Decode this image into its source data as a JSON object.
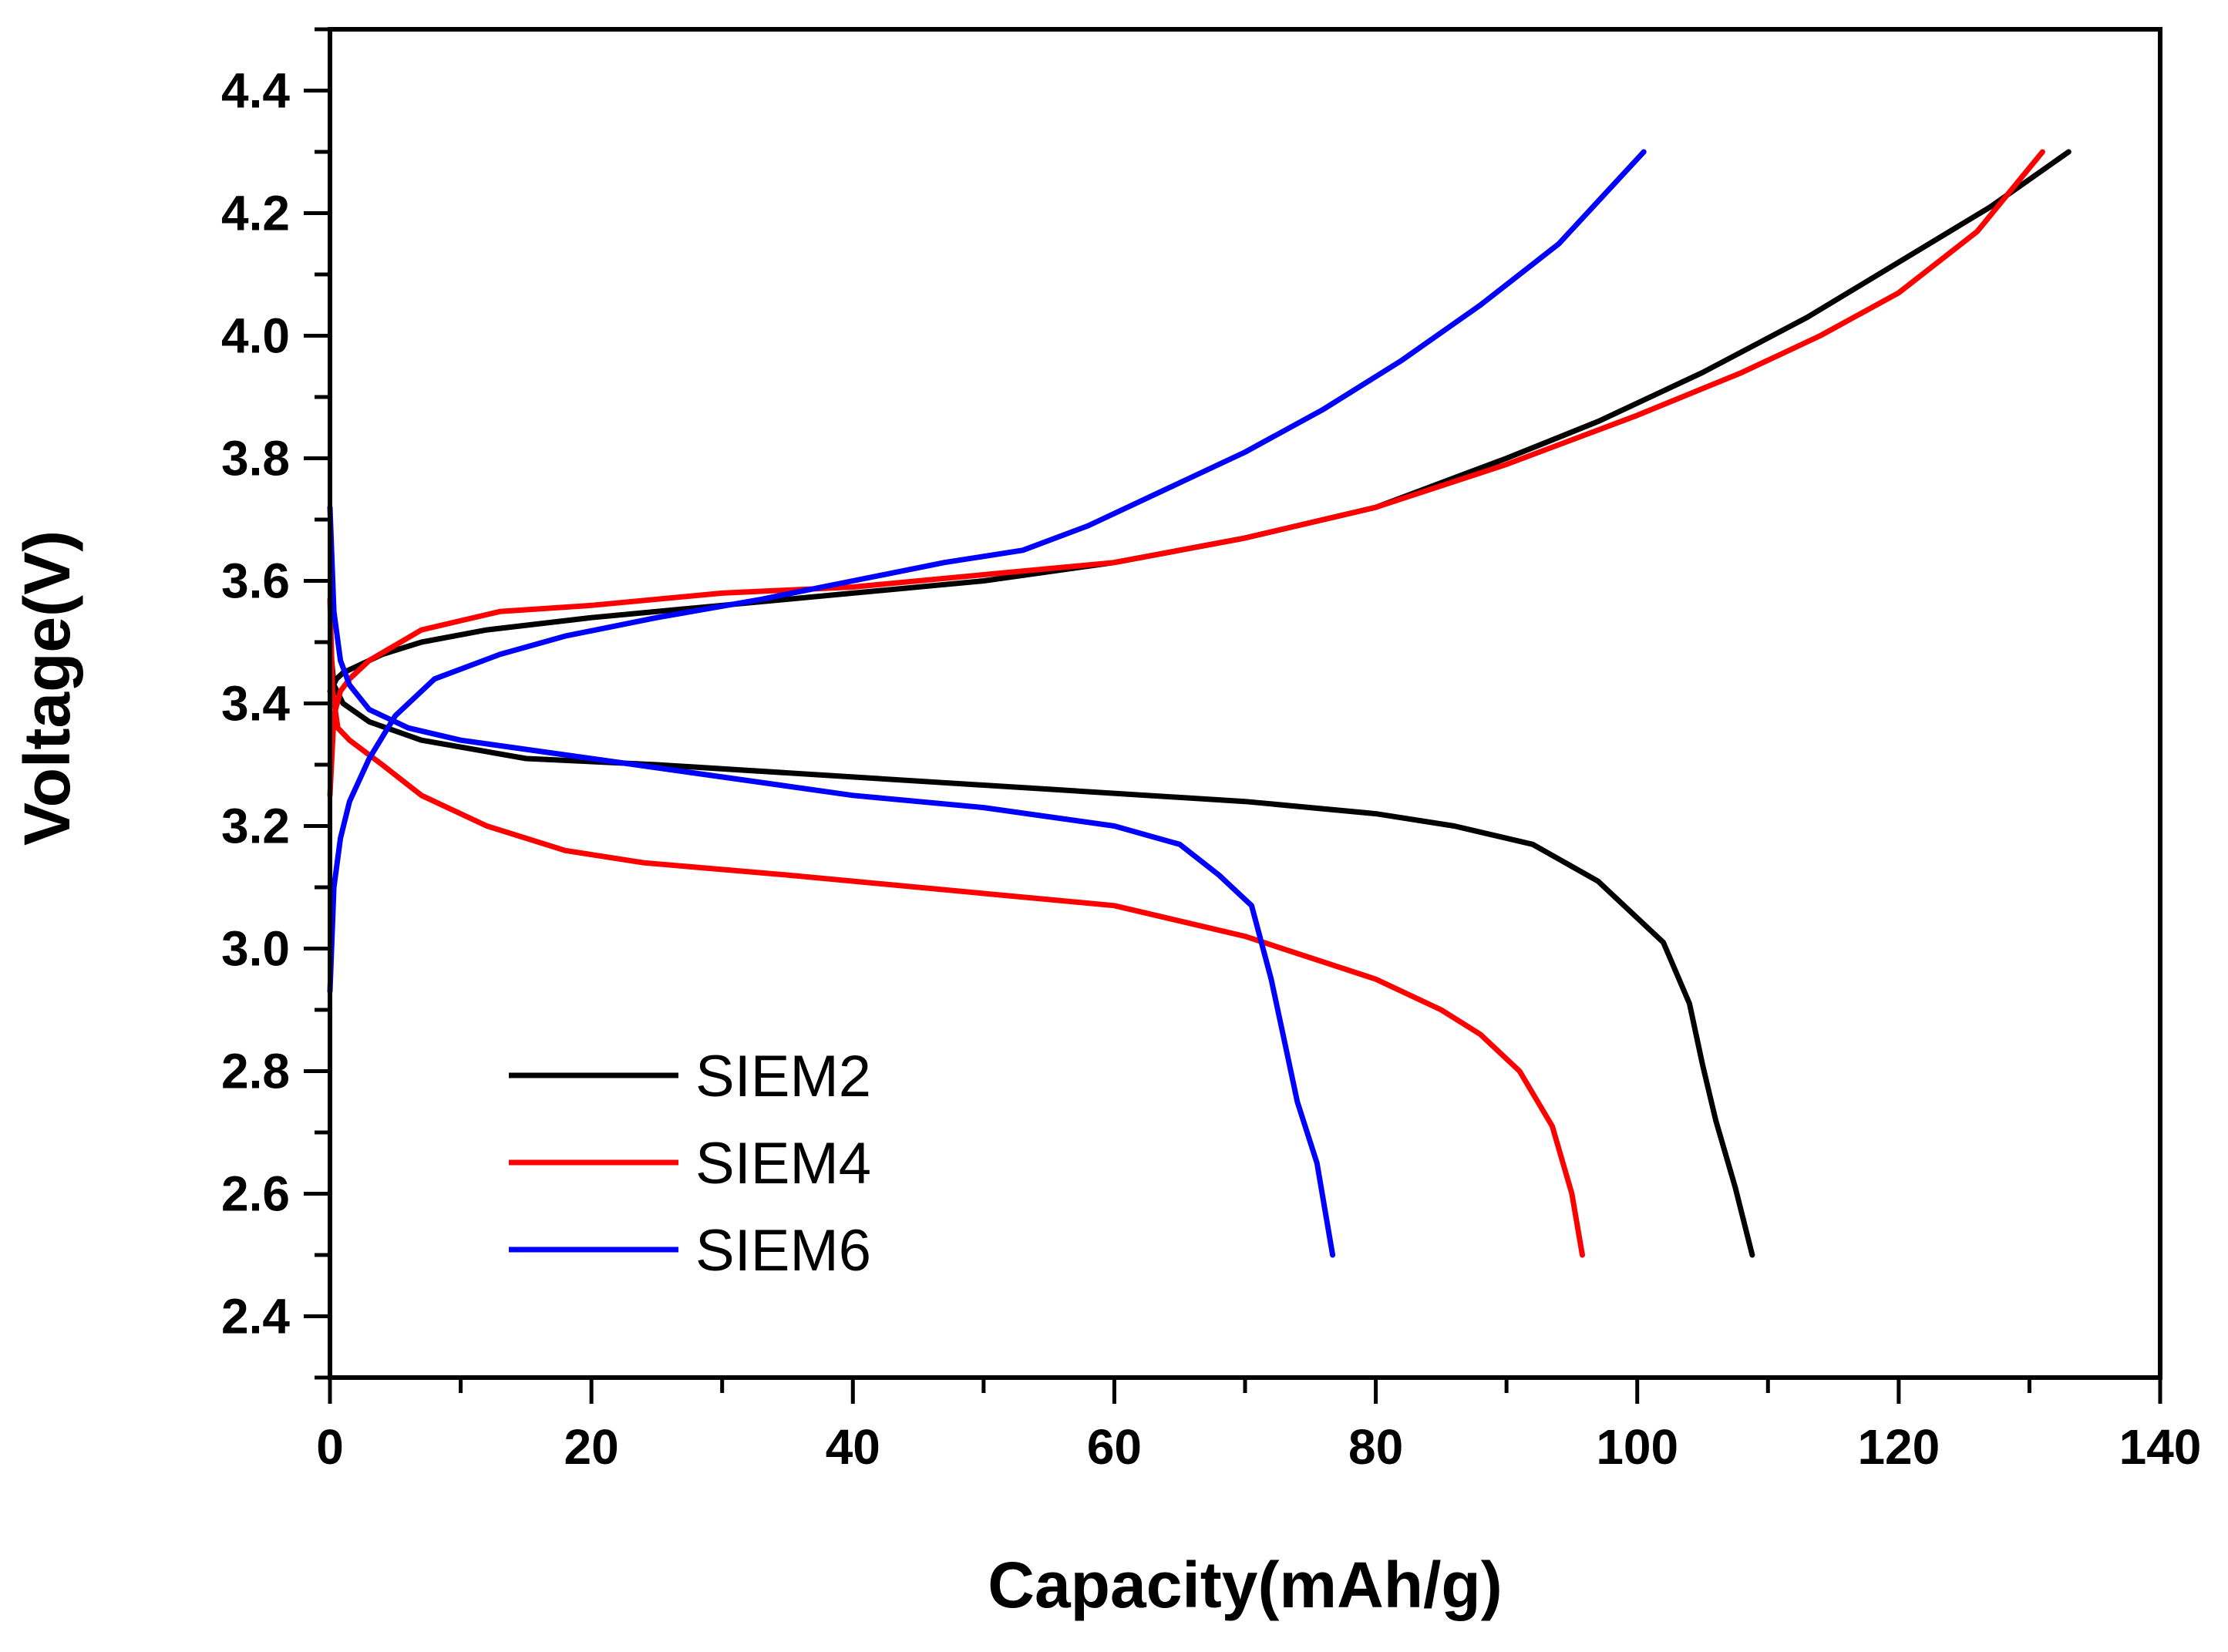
{
  "chart_data": {
    "type": "line",
    "xlabel": "Capacity(mAh/g)",
    "ylabel": "Voltage(V)",
    "xlim": [
      0,
      140
    ],
    "ylim": [
      2.3,
      4.5
    ],
    "xticks": [
      0,
      20,
      40,
      60,
      80,
      100,
      120,
      140
    ],
    "yticks": [
      2.4,
      2.6,
      2.8,
      3.0,
      3.2,
      3.4,
      3.6,
      3.8,
      4.0,
      4.2,
      4.4
    ],
    "xtick_labels": [
      "0",
      "20",
      "40",
      "60",
      "80",
      "100",
      "120",
      "140"
    ],
    "ytick_labels": [
      "2.4",
      "2.6",
      "2.8",
      "3.0",
      "3.2",
      "3.4",
      "3.6",
      "3.8",
      "4.0",
      "4.2",
      "4.4"
    ],
    "grid": false,
    "legend_position": "lower-left",
    "series": [
      {
        "name": "SIEM2",
        "color": "#000000",
        "charge": {
          "x": [
            0,
            0.5,
            1,
            2,
            4,
            7,
            12,
            20,
            30,
            40,
            50,
            60,
            70,
            80,
            90,
            97,
            105,
            113,
            120,
            127,
            133
          ],
          "y": [
            3.42,
            3.44,
            3.45,
            3.46,
            3.48,
            3.5,
            3.52,
            3.54,
            3.56,
            3.58,
            3.6,
            3.63,
            3.67,
            3.72,
            3.8,
            3.86,
            3.94,
            4.03,
            4.12,
            4.21,
            4.3
          ]
        },
        "discharge": {
          "x": [
            0,
            0.3,
            1,
            3,
            7,
            15,
            25,
            40,
            55,
            70,
            80,
            86,
            92,
            97,
            102,
            104,
            105,
            106,
            107.5,
            108.8
          ],
          "y": [
            3.5,
            3.43,
            3.4,
            3.37,
            3.34,
            3.31,
            3.3,
            3.28,
            3.26,
            3.24,
            3.22,
            3.2,
            3.17,
            3.11,
            3.01,
            2.91,
            2.81,
            2.72,
            2.61,
            2.5
          ]
        }
      },
      {
        "name": "SIEM4",
        "color": "#ff0000",
        "charge": {
          "x": [
            0,
            0.3,
            0.8,
            1.5,
            3,
            7,
            13,
            20,
            30,
            40,
            50,
            60,
            70,
            80,
            90,
            100,
            108,
            114,
            120,
            126,
            131
          ],
          "y": [
            3.25,
            3.38,
            3.42,
            3.44,
            3.47,
            3.52,
            3.55,
            3.56,
            3.58,
            3.59,
            3.61,
            3.63,
            3.67,
            3.72,
            3.79,
            3.87,
            3.94,
            4.0,
            4.07,
            4.17,
            4.3
          ]
        },
        "discharge": {
          "x": [
            0,
            0.2,
            0.6,
            1.5,
            4,
            7,
            12,
            18,
            24,
            35,
            50,
            60,
            70,
            80,
            85,
            88,
            91,
            93.5,
            95,
            95.8
          ],
          "y": [
            3.57,
            3.42,
            3.36,
            3.34,
            3.3,
            3.25,
            3.2,
            3.16,
            3.14,
            3.12,
            3.09,
            3.07,
            3.02,
            2.95,
            2.9,
            2.86,
            2.8,
            2.71,
            2.6,
            2.5
          ]
        }
      },
      {
        "name": "SIEM6",
        "color": "#0000ff",
        "charge": {
          "x": [
            0,
            0.3,
            0.8,
            1.5,
            3,
            5,
            8,
            13,
            18,
            25,
            33,
            40,
            47,
            53,
            58,
            64,
            70,
            76,
            82,
            88,
            94,
            100.5
          ],
          "y": [
            2.93,
            3.1,
            3.18,
            3.24,
            3.31,
            3.38,
            3.44,
            3.48,
            3.51,
            3.54,
            3.57,
            3.6,
            3.63,
            3.65,
            3.69,
            3.75,
            3.81,
            3.88,
            3.96,
            4.05,
            4.15,
            4.3
          ]
        },
        "discharge": {
          "x": [
            0,
            0.3,
            0.8,
            1.5,
            3,
            6,
            10,
            20,
            30,
            40,
            50,
            60,
            65,
            68,
            70.5,
            72,
            73,
            74,
            75.5,
            76.7
          ],
          "y": [
            3.72,
            3.55,
            3.47,
            3.43,
            3.39,
            3.36,
            3.34,
            3.31,
            3.28,
            3.25,
            3.23,
            3.2,
            3.17,
            3.12,
            3.07,
            2.95,
            2.85,
            2.75,
            2.65,
            2.5
          ]
        }
      }
    ]
  }
}
